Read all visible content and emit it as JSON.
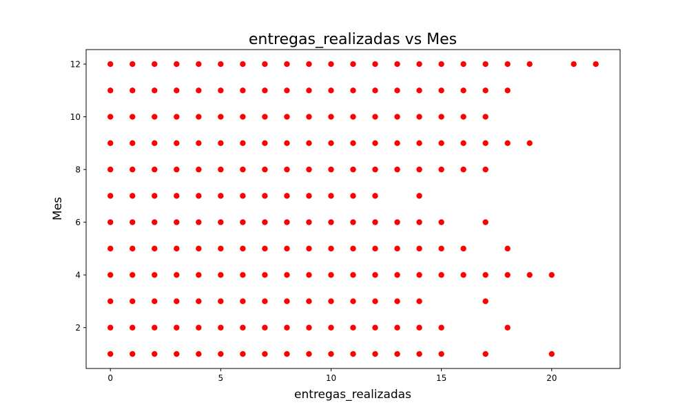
{
  "chart_data": {
    "type": "scatter",
    "title": "entregas_realizadas vs Mes",
    "xlabel": "entregas_realizadas",
    "ylabel": "Mes",
    "xlim": [
      -1.1,
      23.1
    ],
    "ylim": [
      0.45,
      12.55
    ],
    "xticks": [
      0,
      5,
      10,
      15,
      20
    ],
    "yticks": [
      2,
      4,
      6,
      8,
      10,
      12
    ],
    "grid": false,
    "marker_color": "#ff0000",
    "points_by_month": {
      "1": [
        0,
        1,
        2,
        3,
        4,
        5,
        6,
        7,
        8,
        9,
        10,
        11,
        12,
        13,
        14,
        15,
        17,
        20
      ],
      "2": [
        0,
        1,
        2,
        3,
        4,
        5,
        6,
        7,
        8,
        9,
        10,
        11,
        12,
        13,
        14,
        15,
        18
      ],
      "3": [
        0,
        1,
        2,
        3,
        4,
        5,
        6,
        7,
        8,
        9,
        10,
        11,
        12,
        13,
        14,
        17
      ],
      "4": [
        0,
        1,
        2,
        3,
        4,
        5,
        6,
        7,
        8,
        9,
        10,
        11,
        12,
        13,
        14,
        15,
        16,
        17,
        18,
        19,
        20
      ],
      "5": [
        0,
        1,
        2,
        3,
        4,
        5,
        6,
        7,
        8,
        9,
        10,
        11,
        12,
        13,
        14,
        15,
        16,
        18
      ],
      "6": [
        0,
        1,
        2,
        3,
        4,
        5,
        6,
        7,
        8,
        9,
        10,
        11,
        12,
        13,
        14,
        15,
        17
      ],
      "7": [
        0,
        1,
        2,
        3,
        4,
        5,
        6,
        7,
        8,
        9,
        10,
        11,
        12,
        14
      ],
      "8": [
        0,
        1,
        2,
        3,
        4,
        5,
        6,
        7,
        8,
        9,
        10,
        11,
        12,
        13,
        14,
        15,
        16,
        17
      ],
      "9": [
        0,
        1,
        2,
        3,
        4,
        5,
        6,
        7,
        8,
        9,
        10,
        11,
        12,
        13,
        14,
        15,
        16,
        17,
        18,
        19
      ],
      "10": [
        0,
        1,
        2,
        3,
        4,
        5,
        6,
        7,
        8,
        9,
        10,
        11,
        12,
        13,
        14,
        15,
        16,
        17
      ],
      "11": [
        0,
        1,
        2,
        3,
        4,
        5,
        6,
        7,
        8,
        9,
        10,
        11,
        12,
        13,
        14,
        15,
        16,
        17,
        18
      ],
      "12": [
        0,
        1,
        2,
        3,
        4,
        5,
        6,
        7,
        8,
        9,
        10,
        11,
        12,
        13,
        14,
        15,
        16,
        17,
        18,
        19,
        21,
        22
      ]
    }
  }
}
